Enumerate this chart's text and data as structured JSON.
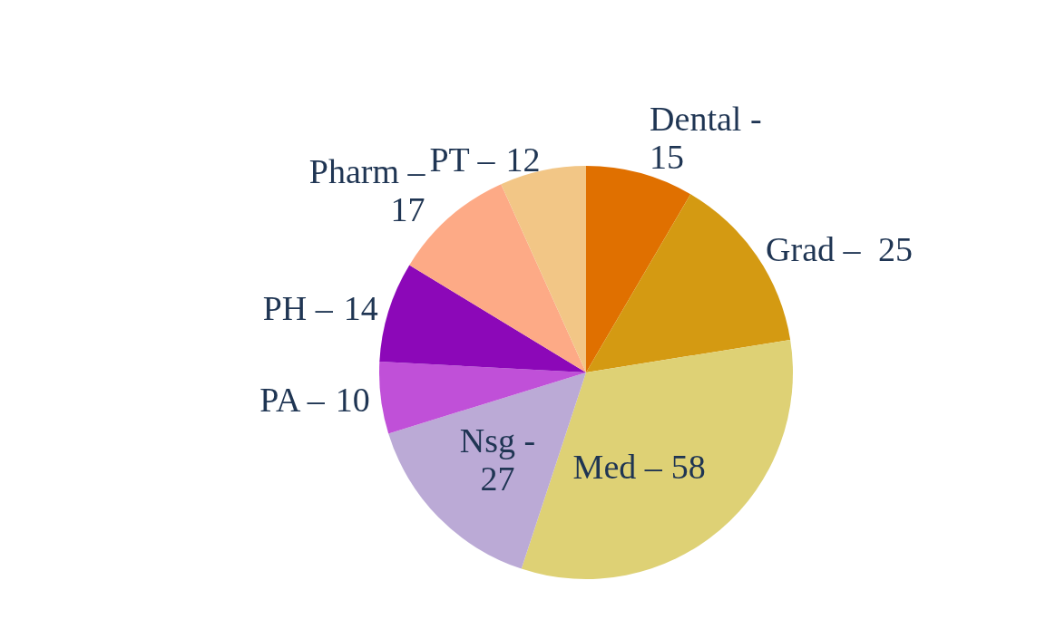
{
  "chart_data": {
    "type": "pie",
    "categories": [
      "Dental -",
      "Grad –",
      "Med –",
      "Nsg -",
      "PA –",
      "PH –",
      "Pharm –",
      "PT –"
    ],
    "data_labels": true,
    "values": [
      15,
      25,
      58,
      27,
      10,
      14,
      17,
      12
    ],
    "colors": [
      "#e07000",
      "#d49a12",
      "#ded175",
      "#bbaad6",
      "#c050d8",
      "#8c08b8",
      "#fdaa86",
      "#f2c686"
    ]
  }
}
